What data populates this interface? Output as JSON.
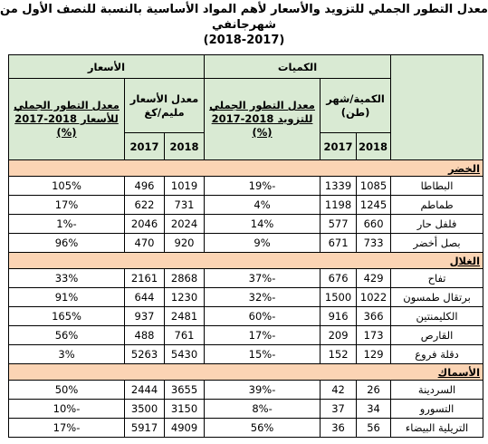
{
  "title": {
    "line1": "معدل التطور الجملي للتزويد والأسعار لأهم المواد الأساسية بالنسبة للنصف الأول من شهرجانفي",
    "line2": "(2018-2017)"
  },
  "header": {
    "quantities": "الكميات",
    "prices": "الأسعار",
    "qty_per_month": "الكمية/شهر",
    "qty_unit": "(طن)",
    "qty_growth": "معدل التطور الجملي للتزويد 2018-2017 (%)",
    "price_avg": "معدل الأسعار",
    "price_unit": "مليم/كغ",
    "price_growth": "معدل التطور الجملي للأسعار 2018-2017 (%)",
    "year_2018": "2018",
    "year_2017": "2017"
  },
  "categories": [
    {
      "name": "الخضر",
      "rows": [
        {
          "product": "البطاطا",
          "qty_2018": "1085",
          "qty_2017": "1339",
          "qty_growth": "-19%",
          "price_2018": "1019",
          "price_2017": "496",
          "price_growth": "105%"
        },
        {
          "product": "طماطم",
          "qty_2018": "1245",
          "qty_2017": "1198",
          "qty_growth": "4%",
          "price_2018": "731",
          "price_2017": "622",
          "price_growth": "17%"
        },
        {
          "product": "فلفل حار",
          "qty_2018": "660",
          "qty_2017": "577",
          "qty_growth": "14%",
          "price_2018": "2024",
          "price_2017": "2046",
          "price_growth": "-1%"
        },
        {
          "product": "بصل أخضر",
          "qty_2018": "733",
          "qty_2017": "671",
          "qty_growth": "9%",
          "price_2018": "920",
          "price_2017": "470",
          "price_growth": "96%"
        }
      ]
    },
    {
      "name": "الغلال",
      "rows": [
        {
          "product": "تفاح",
          "qty_2018": "429",
          "qty_2017": "676",
          "qty_growth": "-37%",
          "price_2018": "2868",
          "price_2017": "2161",
          "price_growth": "33%"
        },
        {
          "product": "برتقال طمسون",
          "qty_2018": "1022",
          "qty_2017": "1500",
          "qty_growth": "-32%",
          "price_2018": "1230",
          "price_2017": "644",
          "price_growth": "91%"
        },
        {
          "product": "الكليمنتين",
          "qty_2018": "366",
          "qty_2017": "916",
          "qty_growth": "-60%",
          "price_2018": "2481",
          "price_2017": "937",
          "price_growth": "165%"
        },
        {
          "product": "القارص",
          "qty_2018": "173",
          "qty_2017": "209",
          "qty_growth": "-17%",
          "price_2018": "761",
          "price_2017": "488",
          "price_growth": "56%"
        },
        {
          "product": "دقلة فروع",
          "qty_2018": "129",
          "qty_2017": "152",
          "qty_growth": "-15%",
          "price_2018": "5430",
          "price_2017": "5263",
          "price_growth": "3%"
        }
      ]
    },
    {
      "name": "الأسماك",
      "rows": [
        {
          "product": "السردينة",
          "qty_2018": "26",
          "qty_2017": "42",
          "qty_growth": "-39%",
          "price_2018": "3655",
          "price_2017": "2444",
          "price_growth": "50%"
        },
        {
          "product": "التسورو",
          "qty_2018": "34",
          "qty_2017": "37",
          "qty_growth": "-8%",
          "price_2018": "3150",
          "price_2017": "3500",
          "price_growth": "-10%"
        },
        {
          "product": "التريلية البيضاء",
          "qty_2018": "56",
          "qty_2017": "36",
          "qty_growth": "56%",
          "price_2018": "4909",
          "price_2017": "5917",
          "price_growth": "-17%"
        }
      ]
    }
  ]
}
